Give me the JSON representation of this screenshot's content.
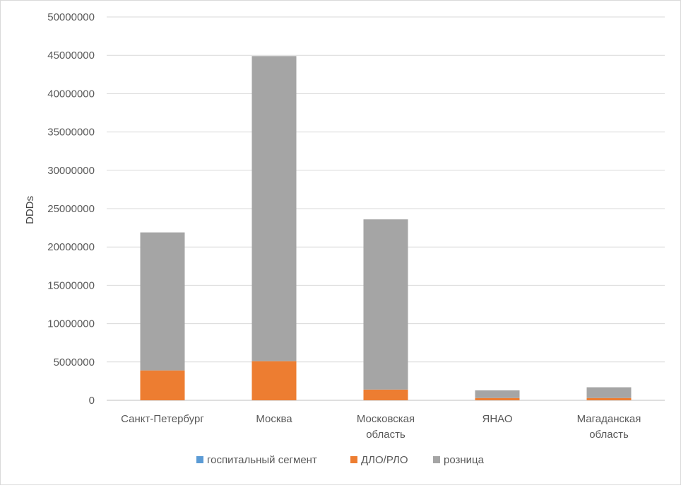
{
  "chart_data": {
    "type": "bar",
    "stacked": true,
    "title": "",
    "xlabel": "",
    "ylabel": "DDDs",
    "ylim": [
      0,
      50000000
    ],
    "yticks": [
      0,
      5000000,
      10000000,
      15000000,
      20000000,
      25000000,
      30000000,
      35000000,
      40000000,
      45000000,
      50000000
    ],
    "grid": true,
    "legend": "bottom",
    "categories": [
      [
        "Санкт-Петербург"
      ],
      [
        "Москва"
      ],
      [
        "Московская",
        "область"
      ],
      [
        "ЯНАО"
      ],
      [
        "Магаданская",
        "область"
      ]
    ],
    "series": [
      {
        "name": "госпитальный сегмент",
        "color": "#5B9BD5",
        "values": [
          0,
          0,
          0,
          0,
          0
        ]
      },
      {
        "name": "ДЛО/РЛО",
        "color": "#ED7D31",
        "values": [
          3900000,
          5100000,
          1400000,
          300000,
          300000
        ]
      },
      {
        "name": "розница",
        "color": "#A5A5A5",
        "values": [
          18000000,
          39800000,
          22200000,
          1000000,
          1400000
        ]
      }
    ]
  }
}
